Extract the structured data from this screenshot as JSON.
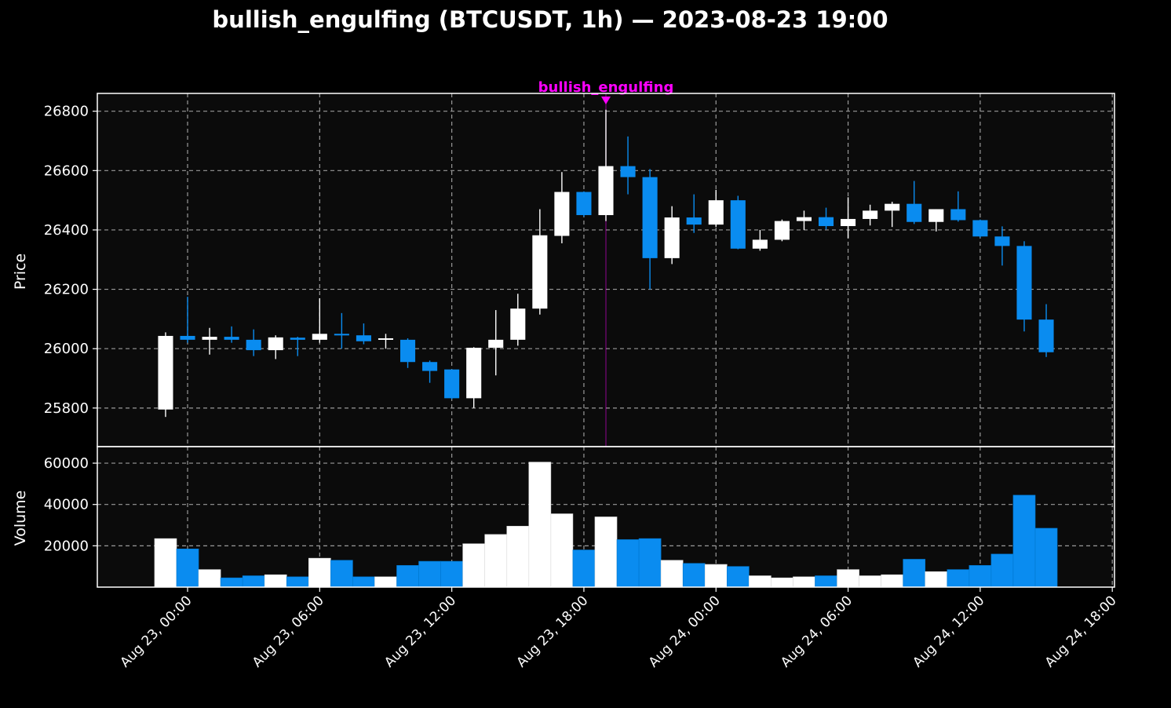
{
  "chart_data": {
    "type": "candlestick",
    "title": "bullish_engulfing (BTCUSDT, 1h) — 2023-08-23 19:00",
    "price_panel": {
      "ylabel": "Price",
      "ylim": [
        25670,
        26860
      ],
      "yticks": [
        25800,
        26000,
        26200,
        26400,
        26600,
        26800
      ],
      "ytick_labels": [
        "25800",
        "26000",
        "26200",
        "26400",
        "26600",
        "26800"
      ],
      "grid": true
    },
    "volume_panel": {
      "ylabel": "Volume",
      "ylim": [
        0,
        68000
      ],
      "yticks": [
        20000,
        40000,
        60000
      ],
      "ytick_labels": [
        "20000",
        "40000",
        "60000"
      ],
      "grid": true
    },
    "x_axis": {
      "unit": "hours since Aug 23, 00:00",
      "xlim": [
        -4.1,
        42.1
      ],
      "ticks": [
        0,
        6,
        12,
        18,
        24,
        30,
        36,
        42
      ],
      "tick_labels": [
        "Aug 23, 00:00",
        "Aug 23, 06:00",
        "Aug 23, 12:00",
        "Aug 23, 18:00",
        "Aug 24, 00:00",
        "Aug 24, 06:00",
        "Aug 24, 12:00",
        "Aug 24, 18:00"
      ]
    },
    "colors": {
      "up": "#ffffff",
      "down": "#0a8cf0",
      "background": "#000000",
      "panel": "#0b0b0b",
      "grid": "#9a9a9a",
      "annotation": "#ff00ff"
    },
    "annotation": {
      "text": "bullish_engulfing",
      "hour": 19
    },
    "candles": [
      {
        "t": -1,
        "o": 25795,
        "h": 26055,
        "l": 25770,
        "c": 26043,
        "v": 23500
      },
      {
        "t": 0,
        "o": 26043,
        "h": 26175,
        "l": 26020,
        "c": 26030,
        "v": 18500
      },
      {
        "t": 1,
        "o": 26030,
        "h": 26070,
        "l": 25980,
        "c": 26040,
        "v": 8500
      },
      {
        "t": 2,
        "o": 26040,
        "h": 26075,
        "l": 26020,
        "c": 26030,
        "v": 4500
      },
      {
        "t": 3,
        "o": 26030,
        "h": 26065,
        "l": 25975,
        "c": 25995,
        "v": 5500
      },
      {
        "t": 4,
        "o": 25995,
        "h": 26045,
        "l": 25965,
        "c": 26038,
        "v": 6000
      },
      {
        "t": 5,
        "o": 26037,
        "h": 26040,
        "l": 25975,
        "c": 26030,
        "v": 5000
      },
      {
        "t": 6,
        "o": 26030,
        "h": 26170,
        "l": 26020,
        "c": 26050,
        "v": 14000
      },
      {
        "t": 7,
        "o": 26050,
        "h": 26120,
        "l": 26000,
        "c": 26045,
        "v": 13000
      },
      {
        "t": 8,
        "o": 26045,
        "h": 26085,
        "l": 26015,
        "c": 26025,
        "v": 5000
      },
      {
        "t": 9,
        "o": 26030,
        "h": 26050,
        "l": 26000,
        "c": 26035,
        "v": 5000
      },
      {
        "t": 10,
        "o": 26030,
        "h": 26035,
        "l": 25935,
        "c": 25955,
        "v": 10500
      },
      {
        "t": 11,
        "o": 25955,
        "h": 25960,
        "l": 25885,
        "c": 25925,
        "v": 12500
      },
      {
        "t": 12,
        "o": 25930,
        "h": 25930,
        "l": 25830,
        "c": 25833,
        "v": 12500
      },
      {
        "t": 13,
        "o": 25833,
        "h": 26005,
        "l": 25800,
        "c": 26003,
        "v": 21000
      },
      {
        "t": 14,
        "o": 26003,
        "h": 26130,
        "l": 25910,
        "c": 26030,
        "v": 25500
      },
      {
        "t": 15,
        "o": 26030,
        "h": 26185,
        "l": 26010,
        "c": 26135,
        "v": 29500
      },
      {
        "t": 16,
        "o": 26135,
        "h": 26470,
        "l": 26115,
        "c": 26382,
        "v": 60500
      },
      {
        "t": 17,
        "o": 26380,
        "h": 26595,
        "l": 26355,
        "c": 26528,
        "v": 35500
      },
      {
        "t": 18,
        "o": 26528,
        "h": 26530,
        "l": 26445,
        "c": 26450,
        "v": 18000
      },
      {
        "t": 19,
        "o": 26450,
        "h": 26805,
        "l": 26430,
        "c": 26615,
        "v": 34000
      },
      {
        "t": 20,
        "o": 26615,
        "h": 26715,
        "l": 26520,
        "c": 26578,
        "v": 23000
      },
      {
        "t": 21,
        "o": 26578,
        "h": 26605,
        "l": 26200,
        "c": 26305,
        "v": 23500
      },
      {
        "t": 22,
        "o": 26305,
        "h": 26480,
        "l": 26285,
        "c": 26442,
        "v": 13000
      },
      {
        "t": 23,
        "o": 26442,
        "h": 26520,
        "l": 26390,
        "c": 26418,
        "v": 11500
      },
      {
        "t": 24,
        "o": 26418,
        "h": 26535,
        "l": 26410,
        "c": 26500,
        "v": 11000
      },
      {
        "t": 25,
        "o": 26500,
        "h": 26515,
        "l": 26335,
        "c": 26337,
        "v": 10000
      },
      {
        "t": 26,
        "o": 26337,
        "h": 26400,
        "l": 26330,
        "c": 26367,
        "v": 5500
      },
      {
        "t": 27,
        "o": 26367,
        "h": 26435,
        "l": 26362,
        "c": 26430,
        "v": 4500
      },
      {
        "t": 28,
        "o": 26430,
        "h": 26465,
        "l": 26400,
        "c": 26443,
        "v": 5000
      },
      {
        "t": 29,
        "o": 26443,
        "h": 26475,
        "l": 26402,
        "c": 26413,
        "v": 5500
      },
      {
        "t": 30,
        "o": 26413,
        "h": 26510,
        "l": 26372,
        "c": 26437,
        "v": 8500
      },
      {
        "t": 31,
        "o": 26437,
        "h": 26485,
        "l": 26415,
        "c": 26465,
        "v": 5500
      },
      {
        "t": 32,
        "o": 26465,
        "h": 26495,
        "l": 26410,
        "c": 26488,
        "v": 6000
      },
      {
        "t": 33,
        "o": 26488,
        "h": 26565,
        "l": 26420,
        "c": 26427,
        "v": 13500
      },
      {
        "t": 34,
        "o": 26427,
        "h": 26470,
        "l": 26395,
        "c": 26470,
        "v": 7500
      },
      {
        "t": 35,
        "o": 26470,
        "h": 26530,
        "l": 26428,
        "c": 26433,
        "v": 8500
      },
      {
        "t": 36,
        "o": 26433,
        "h": 26435,
        "l": 26375,
        "c": 26378,
        "v": 10500
      },
      {
        "t": 37,
        "o": 26378,
        "h": 26412,
        "l": 26280,
        "c": 26346,
        "v": 16000
      },
      {
        "t": 38,
        "o": 26346,
        "h": 26362,
        "l": 26058,
        "c": 26098,
        "v": 44500
      },
      {
        "t": 39,
        "o": 26098,
        "h": 26150,
        "l": 25972,
        "c": 25988,
        "v": 28500
      }
    ]
  }
}
